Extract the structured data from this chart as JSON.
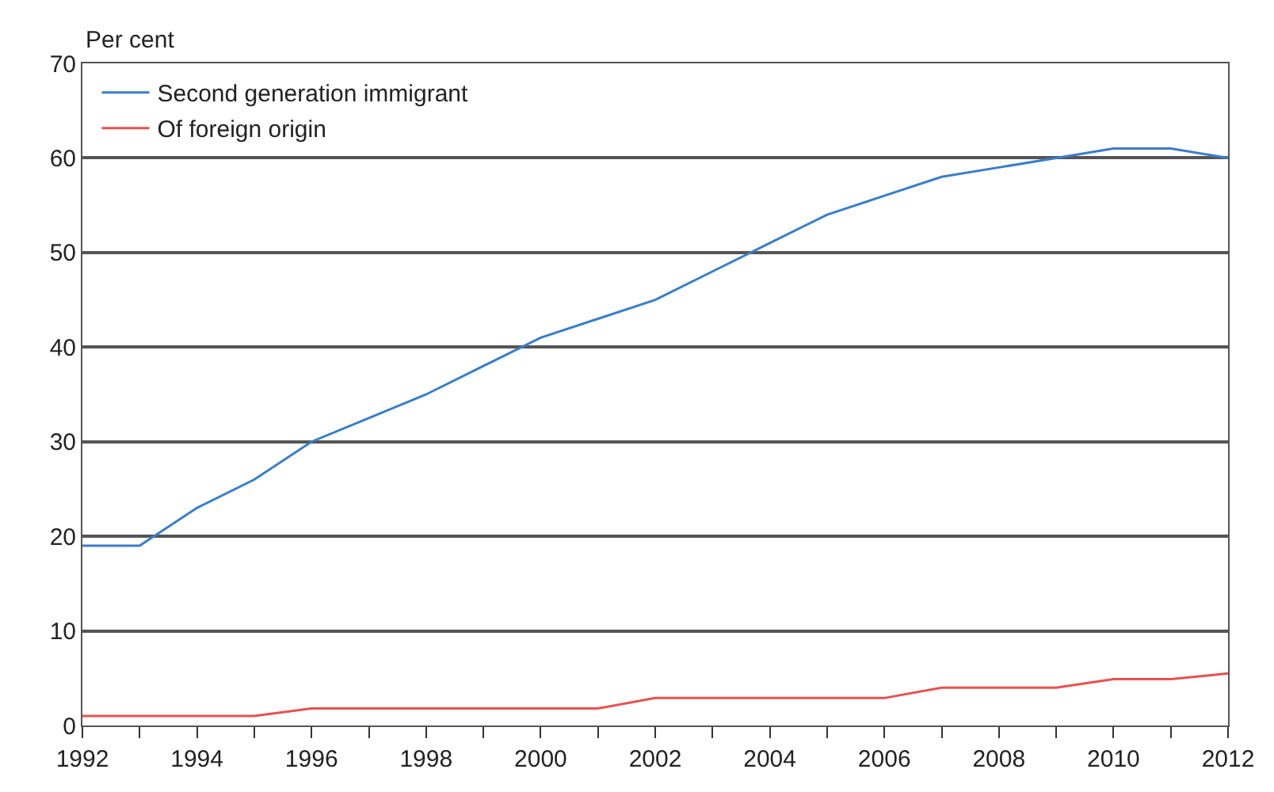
{
  "chart_data": {
    "type": "line",
    "ylabel": "Per cent",
    "x": [
      1992,
      1993,
      1994,
      1995,
      1996,
      1997,
      1998,
      1999,
      2000,
      2001,
      2002,
      2003,
      2004,
      2005,
      2006,
      2007,
      2008,
      2009,
      2010,
      2011,
      2012
    ],
    "series": [
      {
        "name": "Second generation immigrant",
        "color": "#3a7dc9",
        "values": [
          19,
          19,
          23,
          26,
          30,
          32.5,
          35,
          38,
          41,
          43,
          45,
          48,
          51,
          54,
          56,
          58,
          59,
          60,
          61,
          61,
          60
        ]
      },
      {
        "name": "Of foreign origin",
        "color": "#e85050",
        "values": [
          1,
          1,
          1,
          1,
          1.8,
          1.8,
          1.8,
          1.8,
          1.8,
          1.8,
          2.9,
          2.9,
          2.9,
          2.9,
          2.9,
          4,
          4,
          4,
          4.9,
          4.9,
          5.5
        ]
      }
    ],
    "xlim": [
      1992,
      2012
    ],
    "xticks": [
      1992,
      {
        "value": 1993,
        "label": null
      },
      1994,
      {
        "value": 1995,
        "label": null
      },
      1996,
      {
        "value": 1997,
        "label": null
      },
      1998,
      {
        "value": 1999,
        "label": null
      },
      2000,
      {
        "value": 2001,
        "label": null
      },
      2002,
      {
        "value": 2003,
        "label": null
      },
      2004,
      {
        "value": 2005,
        "label": null
      },
      2006,
      {
        "value": 2007,
        "label": null
      },
      2008,
      {
        "value": 2009,
        "label": null
      },
      2010,
      {
        "value": 2011,
        "label": null
      },
      2012
    ],
    "ylim": [
      0,
      70
    ],
    "yticks": [
      0,
      10,
      20,
      30,
      40,
      50,
      60,
      70
    ],
    "grid": "y",
    "legend": "top left",
    "marker": "none",
    "line_style": "solid"
  }
}
